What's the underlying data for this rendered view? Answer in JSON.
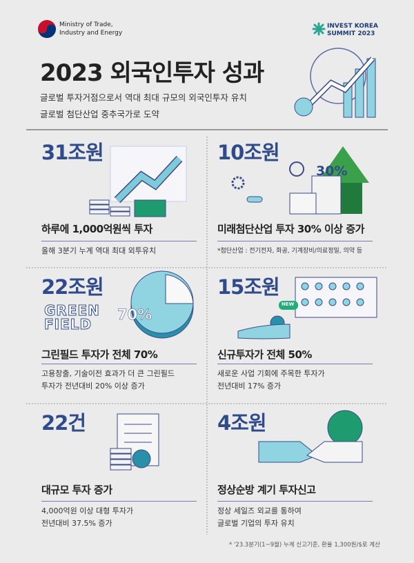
{
  "header": {
    "ministry": [
      "Ministry of Trade,",
      "Industry and Energy"
    ],
    "event_logo": [
      "INVEST KOREA",
      "SUMMIT 2023"
    ],
    "title": "2023 외국인투자 성과",
    "subtitle": [
      "글로벌 투자거점으로서 역대 최대 규모의 외국인투자 유치",
      "글로벌 첨단산업 중추국가로 도약"
    ]
  },
  "cards": [
    {
      "figure": "31조원",
      "heading": "하루에 1,000억원씩 투자",
      "description": [
        "올해 3분기 누계 역대 최대 외투유치"
      ]
    },
    {
      "figure": "10조원",
      "illustration_text": [
        "30%"
      ],
      "heading": "미래첨단산업 투자 30% 이상 증가",
      "description": [
        "*첨단산업 : 전기전자, 화공, 기계장비/의료정밀, 의약 등"
      ]
    },
    {
      "figure": "22조원",
      "illustration_text": [
        "GREEN",
        "FIELD",
        "70%"
      ],
      "heading": "그린필드 투자가 전체 70%",
      "description": [
        "고용창출, 기술이전 효과가 더 큰 그린필드",
        "투자가 전년대비 20% 이상 증가"
      ]
    },
    {
      "figure": "15조원",
      "illustration_text": [
        "NEW"
      ],
      "heading": "신규투자가 전체 50%",
      "description": [
        "새로운 사업 기회에 주목한 투자가",
        "전년대비 17% 증가"
      ]
    },
    {
      "figure": "22건",
      "heading": "대규모 투자 증가",
      "description": [
        "4,000억원 이상 대형 투자가",
        "전년대비 37.5% 증가"
      ]
    },
    {
      "figure": "4조원",
      "heading": "정상순방 계기 투자신고",
      "description": [
        "정상 세일즈 외교를 통하여",
        "글로벌 기업의 투자 유치"
      ]
    }
  ],
  "footnote": "* '23.3분기(1~9월) 누계 신고기준, 환율 1,300원/$로 계산"
}
